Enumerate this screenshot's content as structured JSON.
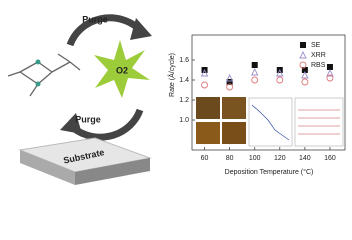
{
  "diagram": {
    "purge_top": "Purge",
    "purge_bottom": "Purge",
    "reactant": "O2",
    "substrate": "Substrate"
  },
  "chart_data": {
    "type": "scatter",
    "xlabel": "Deposition Temperature (°C)",
    "ylabel": "Rate (Å/cycle)",
    "x": [
      60,
      80,
      100,
      120,
      140,
      160
    ],
    "series": [
      {
        "name": "SE",
        "color": "#111111",
        "marker": "square",
        "values": [
          1.5,
          1.38,
          1.55,
          1.5,
          1.5,
          1.53
        ]
      },
      {
        "name": "XRR",
        "color": "#9b8fc9",
        "marker": "triangle",
        "values": [
          1.47,
          1.42,
          1.48,
          1.47,
          1.45,
          1.47
        ]
      },
      {
        "name": "RBS",
        "color": "#e07a7a",
        "marker": "circle",
        "values": [
          1.35,
          1.33,
          1.4,
          1.4,
          1.38,
          1.42
        ]
      }
    ],
    "xlim": [
      50,
      172
    ],
    "ylim": [
      0.7,
      1.85
    ],
    "xticks": [
      60,
      80,
      100,
      120,
      140,
      160
    ],
    "yticks": [
      {
        "value": 1,
        "label": "1.0"
      },
      1.2,
      1.4,
      1.6
    ],
    "legend": "upper right"
  }
}
